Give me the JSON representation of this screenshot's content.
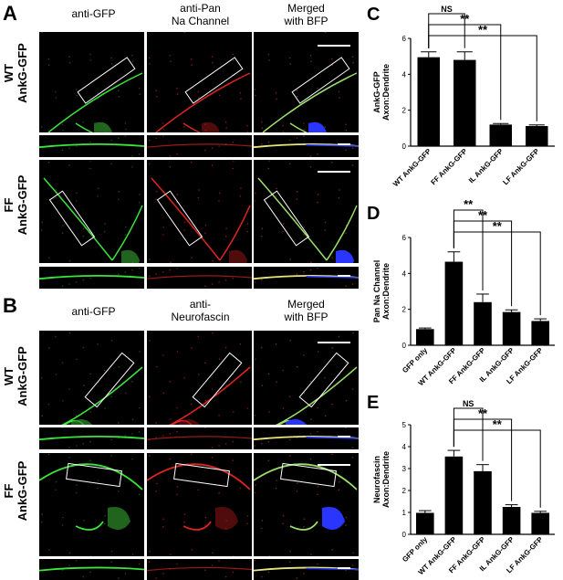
{
  "panels": {
    "A": {
      "letter": "A",
      "col1": "anti-GFP",
      "col2_line1": "anti-Pan",
      "col2_line2": "Na Channel",
      "col3_line1": "Merged",
      "col3_line2": "with BFP",
      "row1_line1": "WT",
      "row1_line2": "AnkG-GFP",
      "row2_line1": "FF",
      "row2_line2": "AnkG-GFP"
    },
    "B": {
      "letter": "B",
      "col1": "anti-GFP",
      "col2_line1": "anti-",
      "col2_line2": "Neurofascin",
      "col3_line1": "Merged",
      "col3_line2": "with BFP",
      "row1_line1": "WT",
      "row1_line2": "AnkG-GFP",
      "row2_line1": "FF",
      "row2_line2": "AnkG-GFP"
    }
  },
  "colors": {
    "gfp": "#39e63a",
    "red": "#e0241f",
    "blue": "#2a35ff",
    "bar": "#000000"
  },
  "chart_data": [
    {
      "id": "C",
      "type": "bar",
      "letter": "C",
      "ylabel_line1": "AnkG-GFP",
      "ylabel_line2": "Axon:Dendrite",
      "categories": [
        "WT AnkG-GFP",
        "FF AnkG-GFP",
        "IL AnkG-GFP",
        "LF AnkG-GFP"
      ],
      "values": [
        4.95,
        4.8,
        1.2,
        1.12
      ],
      "errors": [
        0.3,
        0.45,
        0.06,
        0.06
      ],
      "ylim": [
        0,
        6
      ],
      "yticks": [
        0,
        2,
        4,
        6
      ],
      "significance": [
        {
          "from": 0,
          "to": 1,
          "label": "NS"
        },
        {
          "from": 0,
          "to": 2,
          "label": "**"
        },
        {
          "from": 0,
          "to": 3,
          "label": "**"
        }
      ]
    },
    {
      "id": "D",
      "type": "bar",
      "letter": "D",
      "ylabel_line1": "Pan Na Channel",
      "ylabel_line2": "Axon:Dendrite",
      "categories": [
        "GFP only",
        "WT AnkG-GFP",
        "FF AnkG-GFP",
        "IL AnkG-GFP",
        "LF AnkG-GFP"
      ],
      "values": [
        0.9,
        4.65,
        2.4,
        1.85,
        1.35
      ],
      "errors": [
        0.06,
        0.55,
        0.45,
        0.12,
        0.12
      ],
      "ylim": [
        0,
        6
      ],
      "yticks": [
        0,
        2,
        4,
        6
      ],
      "significance": [
        {
          "from": 1,
          "to": 2,
          "label": "**"
        },
        {
          "from": 1,
          "to": 3,
          "label": "**"
        },
        {
          "from": 1,
          "to": 4,
          "label": "**"
        }
      ]
    },
    {
      "id": "E",
      "type": "bar",
      "letter": "E",
      "ylabel_line1": "Neurofascin",
      "ylabel_line2": "Axon:Dendrite",
      "categories": [
        "GFP only",
        "WT AnkG-GFP",
        "FF AnkG-GFP",
        "IL AnkG-GFP",
        "LF AnkG-GFP"
      ],
      "values": [
        0.98,
        3.55,
        2.88,
        1.25,
        0.98
      ],
      "errors": [
        0.1,
        0.28,
        0.3,
        0.1,
        0.07
      ],
      "ylim": [
        0,
        5
      ],
      "yticks": [
        0,
        1,
        2,
        3,
        4,
        5
      ],
      "significance": [
        {
          "from": 1,
          "to": 2,
          "label": "NS"
        },
        {
          "from": 1,
          "to": 3,
          "label": "**"
        },
        {
          "from": 1,
          "to": 4,
          "label": "**"
        }
      ]
    }
  ]
}
